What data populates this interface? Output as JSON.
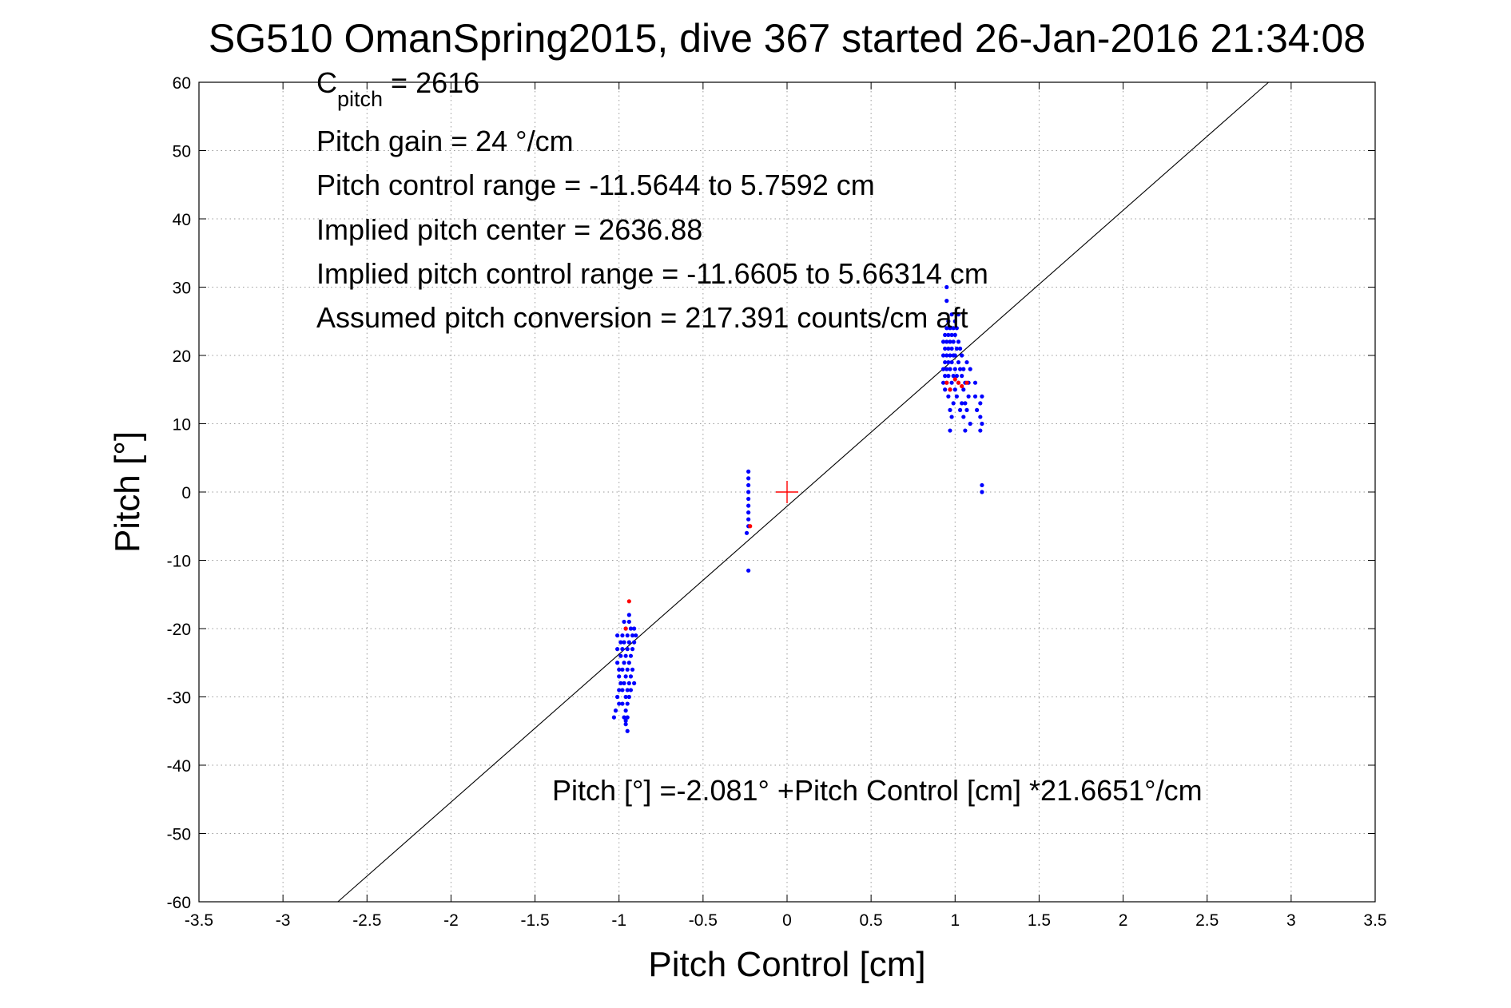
{
  "chart_data": {
    "type": "scatter",
    "title": "SG510 OmanSpring2015, dive 367 started 26-Jan-2016 21:34:08",
    "xlabel": "Pitch Control [cm]",
    "ylabel": "Pitch [°]",
    "xlim": [
      -3.5,
      3.5
    ],
    "ylim": [
      -60,
      60
    ],
    "x_ticks": [
      -3.5,
      -3,
      -2.5,
      -2,
      -1.5,
      -1,
      -0.5,
      0,
      0.5,
      1,
      1.5,
      2,
      2.5,
      3,
      3.5
    ],
    "x_tick_labels": [
      "-3.5",
      "-3",
      "-2.5",
      "-2",
      "-1.5",
      "-1",
      "-0.5",
      "0",
      "0.5",
      "1",
      "1.5",
      "2",
      "2.5",
      "3",
      "3.5"
    ],
    "y_ticks": [
      60,
      50,
      40,
      30,
      20,
      10,
      0,
      -10,
      -20,
      -30,
      -40,
      -50,
      -60
    ],
    "y_tick_labels": [
      "60",
      "50",
      "40",
      "30",
      "20",
      "10",
      "0",
      "-10",
      "-20",
      "-30",
      "-40",
      "-50",
      "-60"
    ],
    "grid": true,
    "legend": "none",
    "annotations": {
      "c_pitch_symbol": "C",
      "c_pitch_subscript": "pitch",
      "c_pitch_value": " = 2616",
      "pitch_gain": "Pitch gain = 24 °/cm",
      "pitch_control_range": "Pitch control range = -11.5644 to 5.7592 cm",
      "implied_pitch_center": "Implied pitch center = 2636.88",
      "implied_pitch_control_range": "Implied pitch control range = -11.6605 to 5.66314 cm",
      "assumed_conversion": "Assumed pitch conversion = 217.391 counts/cm aft",
      "fit_equation": "Pitch [°] =-2.081° +Pitch Control [cm] *21.6651°/cm"
    },
    "fit_line": {
      "intercept": -2.081,
      "slope": 21.6651,
      "color": "#000000"
    },
    "center_marker": {
      "x": 0,
      "y": 0,
      "color": "#ff0000",
      "shape": "plus"
    },
    "series": [
      {
        "color": "#0000ff",
        "marker": "dot",
        "points": [
          [
            -1.01,
            -21
          ],
          [
            -1.01,
            -23
          ],
          [
            -1.01,
            -25
          ],
          [
            -1.0,
            -26
          ],
          [
            -1.0,
            -27
          ],
          [
            -0.99,
            -22
          ],
          [
            -0.99,
            -24
          ],
          [
            -0.99,
            -28
          ],
          [
            -1.0,
            -29
          ],
          [
            -1.01,
            -30
          ],
          [
            -1.0,
            -31
          ],
          [
            -1.02,
            -32
          ],
          [
            -1.03,
            -33
          ],
          [
            -0.98,
            -21
          ],
          [
            -0.98,
            -23
          ],
          [
            -0.98,
            -26
          ],
          [
            -0.98,
            -29
          ],
          [
            -0.98,
            -31
          ],
          [
            -0.97,
            -19
          ],
          [
            -0.97,
            -22
          ],
          [
            -0.97,
            -25
          ],
          [
            -0.97,
            -28
          ],
          [
            -0.97,
            -33
          ],
          [
            -0.96,
            -20
          ],
          [
            -0.96,
            -24
          ],
          [
            -0.96,
            -27
          ],
          [
            -0.96,
            -30
          ],
          [
            -0.96,
            -32
          ],
          [
            -0.96,
            -34
          ],
          [
            -0.95,
            -21
          ],
          [
            -0.95,
            -23
          ],
          [
            -0.95,
            -26
          ],
          [
            -0.95,
            -29
          ],
          [
            -0.95,
            -31
          ],
          [
            -0.95,
            -33
          ],
          [
            -0.94,
            -19
          ],
          [
            -0.94,
            -22
          ],
          [
            -0.94,
            -25
          ],
          [
            -0.94,
            -28
          ],
          [
            -0.94,
            -30
          ],
          [
            -0.93,
            -20
          ],
          [
            -0.93,
            -24
          ],
          [
            -0.93,
            -27
          ],
          [
            -0.93,
            -29
          ],
          [
            -0.92,
            -21
          ],
          [
            -0.92,
            -23
          ],
          [
            -0.92,
            -26
          ],
          [
            -0.91,
            -20
          ],
          [
            -0.91,
            -22
          ],
          [
            -0.91,
            -28
          ],
          [
            -0.9,
            -21
          ],
          [
            -0.95,
            -35
          ],
          [
            -0.96,
            -33.5
          ],
          [
            -0.94,
            -18
          ],
          [
            -0.23,
            3
          ],
          [
            -0.23,
            2
          ],
          [
            -0.23,
            1
          ],
          [
            -0.23,
            0
          ],
          [
            -0.23,
            -1
          ],
          [
            -0.23,
            -2
          ],
          [
            -0.23,
            -3
          ],
          [
            -0.23,
            -4
          ],
          [
            -0.23,
            -5
          ],
          [
            -0.24,
            -6
          ],
          [
            -0.23,
            -11.5
          ],
          [
            0.93,
            16
          ],
          [
            0.93,
            18
          ],
          [
            0.93,
            20
          ],
          [
            0.93,
            22
          ],
          [
            0.94,
            15
          ],
          [
            0.94,
            17
          ],
          [
            0.94,
            19
          ],
          [
            0.94,
            21
          ],
          [
            0.94,
            23
          ],
          [
            0.95,
            16
          ],
          [
            0.95,
            18
          ],
          [
            0.95,
            20
          ],
          [
            0.95,
            22
          ],
          [
            0.95,
            24
          ],
          [
            0.95,
            28
          ],
          [
            0.95,
            30
          ],
          [
            0.96,
            14
          ],
          [
            0.96,
            17
          ],
          [
            0.96,
            19
          ],
          [
            0.96,
            21
          ],
          [
            0.96,
            23
          ],
          [
            0.96,
            25
          ],
          [
            0.97,
            12
          ],
          [
            0.97,
            15
          ],
          [
            0.97,
            18
          ],
          [
            0.97,
            20
          ],
          [
            0.97,
            22
          ],
          [
            0.97,
            24
          ],
          [
            0.97,
            9
          ],
          [
            0.98,
            11
          ],
          [
            0.98,
            16
          ],
          [
            0.98,
            19
          ],
          [
            0.98,
            21
          ],
          [
            0.98,
            23
          ],
          [
            0.98,
            26
          ],
          [
            0.99,
            13
          ],
          [
            0.99,
            17
          ],
          [
            0.99,
            20
          ],
          [
            0.99,
            22
          ],
          [
            0.99,
            24
          ],
          [
            1.0,
            15
          ],
          [
            1.0,
            18
          ],
          [
            1.0,
            20
          ],
          [
            1.0,
            23
          ],
          [
            1.0,
            25
          ],
          [
            1.01,
            14
          ],
          [
            1.01,
            17
          ],
          [
            1.01,
            21
          ],
          [
            1.01,
            24
          ],
          [
            1.02,
            16
          ],
          [
            1.02,
            19
          ],
          [
            1.02,
            22
          ],
          [
            1.02,
            26
          ],
          [
            1.03,
            12
          ],
          [
            1.03,
            18
          ],
          [
            1.03,
            21
          ],
          [
            1.04,
            13
          ],
          [
            1.04,
            17
          ],
          [
            1.04,
            20
          ],
          [
            1.05,
            11
          ],
          [
            1.05,
            15
          ],
          [
            1.05,
            18
          ],
          [
            1.06,
            9
          ],
          [
            1.06,
            13
          ],
          [
            1.06,
            16
          ],
          [
            1.07,
            19
          ],
          [
            1.07,
            12
          ],
          [
            1.08,
            14
          ],
          [
            1.08,
            16
          ],
          [
            1.09,
            18
          ],
          [
            1.09,
            10
          ],
          [
            1.12,
            14
          ],
          [
            1.12,
            16
          ],
          [
            1.13,
            12
          ],
          [
            1.15,
            9
          ],
          [
            1.15,
            11
          ],
          [
            1.15,
            13
          ],
          [
            1.16,
            14
          ],
          [
            1.16,
            10
          ],
          [
            1.16,
            0
          ],
          [
            1.16,
            1
          ]
        ]
      },
      {
        "color": "#ff0000",
        "marker": "dot",
        "points": [
          [
            -0.94,
            -16
          ],
          [
            -0.96,
            -20
          ],
          [
            -0.22,
            -5
          ],
          [
            0.95,
            16
          ],
          [
            0.97,
            15
          ],
          [
            1.0,
            16.5
          ],
          [
            1.02,
            16
          ],
          [
            1.04,
            15.5
          ],
          [
            1.07,
            16
          ]
        ]
      }
    ]
  }
}
